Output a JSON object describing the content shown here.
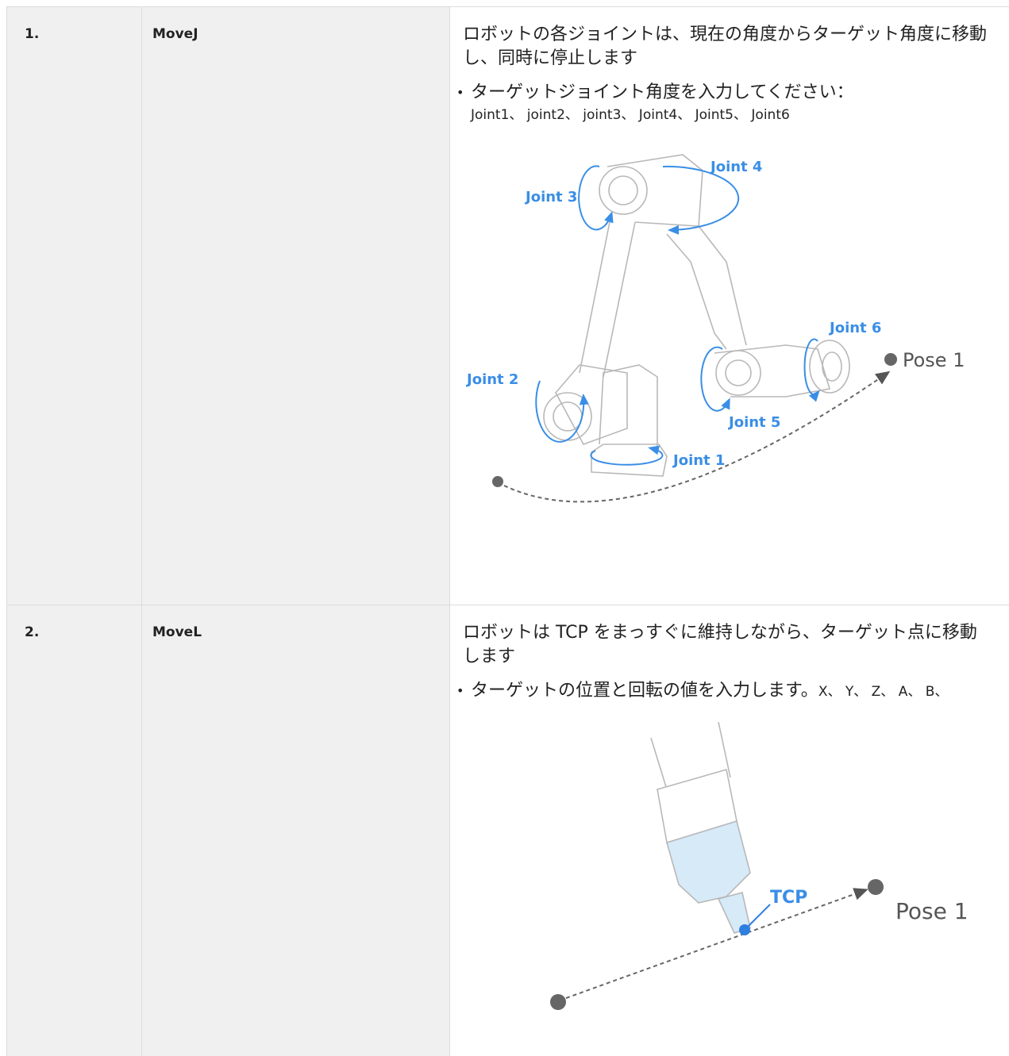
{
  "table": {
    "rows": [
      {
        "number": "1.",
        "command": "MoveJ",
        "description": "ロボットの各ジョイントは、現在の角度からターゲット角度に移動し、同時に停止します",
        "bullet": "ターゲットジョイント角度を入力してください：",
        "detail": "Joint1、 joint2、 joint3、 Joint4、 Joint5、 Joint6",
        "figure_labels": [
          "Joint 3",
          "Joint 4",
          "Joint 2",
          "Joint 1",
          "Joint 5",
          "Joint 6",
          "Pose 1"
        ]
      },
      {
        "number": "2.",
        "command": "MoveL",
        "description": "ロボットは TCP をまっすぐに維持しながら、ターゲット点に移動します",
        "bullet": "ターゲットの位置と回転の値を入力します。",
        "detail": "X、 Y、 Z、 A、 B、",
        "figure_labels": [
          "TCP",
          "Pose 1"
        ]
      }
    ]
  }
}
